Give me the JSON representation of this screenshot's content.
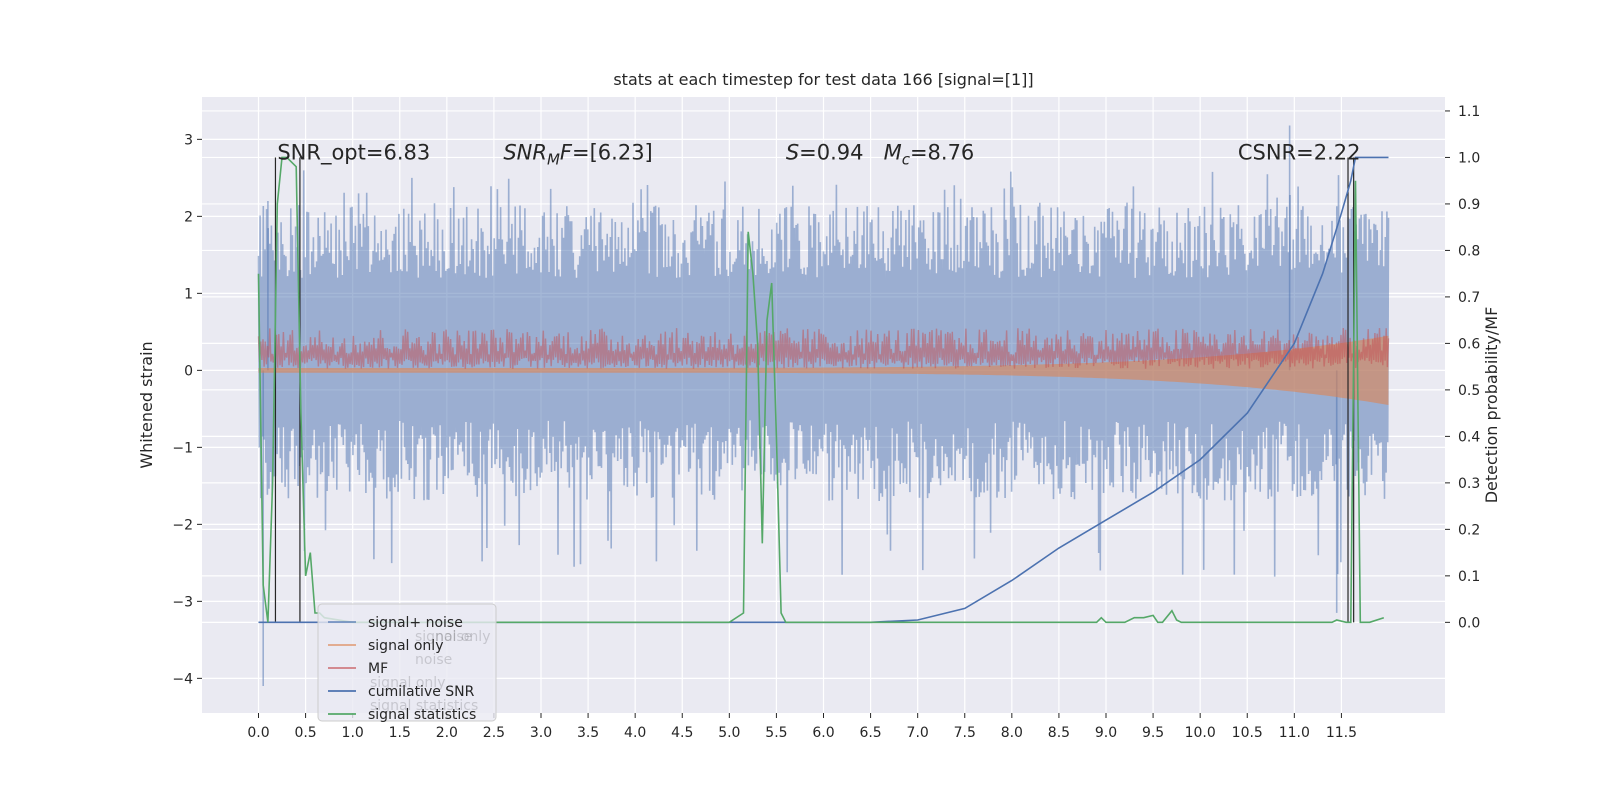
{
  "chart_data": {
    "type": "line",
    "title": "stats at each timestep for test data 166 [signal=[1]]",
    "xlabel": "",
    "ylabel": "Whitened strain",
    "y2label": "Detection probability/MF",
    "xlim": [
      -0.6,
      12.6
    ],
    "ylim": [
      -4.45,
      3.55
    ],
    "y2lim": [
      -0.195,
      1.13
    ],
    "x_ticks": [
      0.0,
      0.5,
      1.0,
      1.5,
      2.0,
      2.5,
      3.0,
      3.5,
      4.0,
      4.5,
      5.0,
      5.5,
      6.0,
      6.5,
      7.0,
      7.5,
      8.0,
      8.5,
      9.0,
      9.5,
      10.0,
      10.5,
      11.0,
      11.5
    ],
    "x_tick_labels": [
      "0.0",
      "0.5",
      "1.0",
      "1.5",
      "2.0",
      "2.5",
      "3.0",
      "3.5",
      "4.0",
      "4.5",
      "5.0",
      "5.5",
      "6.0",
      "6.5",
      "7.0",
      "7.5",
      "8.0",
      "8.5",
      "9.0",
      "9.5",
      "10.0",
      "10.5",
      "11.0",
      "11.5"
    ],
    "y_ticks": [
      -4,
      -3,
      -2,
      -1,
      0,
      1,
      2,
      3
    ],
    "y_tick_labels": [
      "−4",
      "−3",
      "−2",
      "−1",
      "0",
      "1",
      "2",
      "3"
    ],
    "y2_ticks": [
      0.0,
      0.1,
      0.2,
      0.3,
      0.4,
      0.5,
      0.6,
      0.7,
      0.8,
      0.9,
      1.0,
      1.1
    ],
    "y2_tick_labels": [
      "0.0",
      "0.1",
      "0.2",
      "0.3",
      "0.4",
      "0.5",
      "0.6",
      "0.7",
      "0.8",
      "0.9",
      "1.0",
      "1.1"
    ],
    "grid": true,
    "background": "#eaeaf2",
    "legend_location": "lower-left",
    "annotations": [
      {
        "id": "snr-opt",
        "text": "SNR_opt=6.83",
        "x": 0.2,
        "y2": 1.0
      },
      {
        "id": "snr-mf",
        "text": "SNR_MF=[6.23]",
        "x": 2.6,
        "y2": 1.0
      },
      {
        "id": "s-mc",
        "text": "S=0.94   M_c=8.76",
        "x": 5.6,
        "y2": 1.0
      },
      {
        "id": "csnr",
        "text": "CSNR=2.22",
        "x": 10.4,
        "y2": 1.0
      }
    ],
    "legend_ghost_labels": [
      "noise",
      "signal only",
      "noise",
      "signal only",
      "signal statistics"
    ],
    "series": [
      {
        "id": "signal_noise",
        "name": "signal+ noise",
        "axis": "y",
        "color": "#4c72b0",
        "opacity": 0.5,
        "kind": "noise",
        "x_range": [
          0.0,
          12.0
        ],
        "envelope": {
          "low": -1.6,
          "high": 2.0
        },
        "extremes": [
          [
            0.05,
            -4.1
          ],
          [
            10.95,
            3.18
          ],
          [
            11.45,
            -3.15
          ],
          [
            0.1,
            2.2
          ]
        ]
      },
      {
        "id": "signal_only",
        "name": "signal only",
        "axis": "y",
        "color": "#dd8452",
        "opacity": 0.6,
        "kind": "chirp",
        "x_range": [
          0.0,
          12.0
        ],
        "amp_start": 0.03,
        "amp_end": 0.45
      },
      {
        "id": "mf",
        "name": "MF",
        "axis": "y",
        "color": "#c44e52",
        "opacity": 0.5,
        "kind": "noise",
        "x_range": [
          0.0,
          12.0
        ],
        "envelope": {
          "low": 0.0,
          "high": 0.55
        }
      },
      {
        "id": "cumulative_snr",
        "name": "cumilative SNR",
        "axis": "y2",
        "color": "#4c72b0",
        "opacity": 1.0,
        "kind": "line",
        "x": [
          0.0,
          6.0,
          6.5,
          7.0,
          7.5,
          8.0,
          8.5,
          9.0,
          9.5,
          10.0,
          10.5,
          11.0,
          11.3,
          11.5,
          11.6,
          11.65,
          12.0
        ],
        "y": [
          0.0,
          0.0,
          0.0,
          0.005,
          0.03,
          0.09,
          0.16,
          0.22,
          0.28,
          0.35,
          0.45,
          0.6,
          0.75,
          0.88,
          0.95,
          1.0,
          1.0
        ]
      },
      {
        "id": "signal_statistics",
        "name": "signal statistics",
        "axis": "y2",
        "color": "#55a868",
        "opacity": 1.0,
        "kind": "line",
        "x": [
          0.0,
          0.05,
          0.1,
          0.15,
          0.2,
          0.25,
          0.3,
          0.35,
          0.4,
          0.45,
          0.5,
          0.55,
          0.6,
          0.65,
          0.7,
          1.0,
          4.5,
          5.0,
          5.15,
          5.2,
          5.25,
          5.3,
          5.35,
          5.4,
          5.45,
          5.5,
          5.55,
          5.6,
          5.65,
          5.7,
          6.0,
          8.9,
          8.95,
          9.0,
          9.2,
          9.3,
          9.4,
          9.5,
          9.55,
          9.6,
          9.7,
          9.75,
          9.8,
          9.9,
          10.0,
          11.4,
          11.45,
          11.55,
          11.6,
          11.65,
          11.7,
          11.75,
          11.8,
          11.95
        ],
        "y": [
          0.75,
          0.08,
          0.0,
          0.3,
          0.9,
          1.0,
          1.0,
          0.99,
          0.98,
          0.45,
          0.1,
          0.15,
          0.02,
          0.02,
          0.01,
          0.0,
          0.0,
          0.0,
          0.02,
          0.84,
          0.75,
          0.6,
          0.17,
          0.65,
          0.73,
          0.4,
          0.02,
          0.0,
          0.0,
          0.0,
          0.0,
          0.0,
          0.01,
          0.0,
          0.0,
          0.01,
          0.01,
          0.015,
          0.0,
          0.0,
          0.025,
          0.005,
          0.0,
          0.0,
          0.0,
          0.0,
          0.005,
          0.0,
          0.0,
          0.95,
          0.0,
          0.0,
          0.0,
          0.01
        ]
      }
    ],
    "vertical_markers": [
      {
        "x": 0.18,
        "color": "#262626"
      },
      {
        "x": 0.44,
        "color": "#262626"
      },
      {
        "x": 11.57,
        "color": "#262626"
      },
      {
        "x": 11.63,
        "color": "#262626"
      }
    ]
  }
}
